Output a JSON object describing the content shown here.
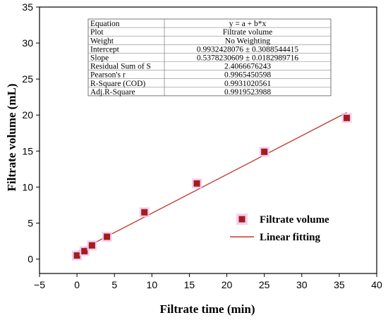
{
  "chart_data": {
    "type": "scatter",
    "xlabel": "Filtrate time (min)",
    "ylabel": "Filtrate volume (mL)",
    "xlim": [
      -5,
      40
    ],
    "ylim": [
      -2,
      35
    ],
    "xticks": [
      -5,
      0,
      5,
      10,
      15,
      20,
      25,
      30,
      35,
      40
    ],
    "yticks": [
      0,
      5,
      10,
      15,
      20,
      25,
      30,
      35
    ],
    "grid": false,
    "legend_position": "lower-right",
    "series": [
      {
        "name": "Filtrate volume",
        "kind": "scatter",
        "color": "#a31d1d",
        "highlight": "#f3c7ef",
        "x": [
          0,
          1,
          2,
          4,
          9,
          16,
          25,
          36
        ],
        "y": [
          0.5,
          1.1,
          1.9,
          3.1,
          6.5,
          10.5,
          14.9,
          19.6
        ]
      },
      {
        "name": "Linear fitting",
        "kind": "line",
        "color": "#c0392b",
        "intercept": 0.9932428076,
        "slope": 0.5378230609,
        "x_range": [
          0,
          36
        ]
      }
    ],
    "stats_table": [
      [
        "Equation",
        "y = a + b*x"
      ],
      [
        "Plot",
        "Filtrate volume"
      ],
      [
        "Weight",
        "No Weighting"
      ],
      [
        "Intercept",
        "0.9932428076 ± 0.3088544415"
      ],
      [
        "Slope",
        "0.5378230609 ± 0.0182989716"
      ],
      [
        "Residual Sum of S",
        "2.4066676243"
      ],
      [
        "Pearson's r",
        "0.9965450598"
      ],
      [
        "R-Square (COD)",
        "0.9931020561"
      ],
      [
        "Adj.R-Square",
        "0.9919523988"
      ]
    ]
  }
}
